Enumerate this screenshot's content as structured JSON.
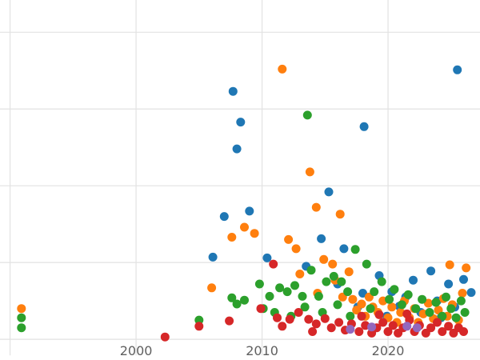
{
  "chart": {
    "background": "#ffffff",
    "gridline_color": "#e2e2e2",
    "tick_label_color": "#5f5f5f"
  },
  "chart_data": {
    "type": "scatter",
    "title": "",
    "xlabel": "",
    "ylabel": "",
    "grid": true,
    "legend": "none",
    "y_axis_labels_visible": false,
    "xlim": [
      1989.2,
      2027.3
    ],
    "ylim": [
      -0.27,
      4.42
    ],
    "x_gridlines": [
      1990,
      2000,
      2010,
      2020
    ],
    "y_gridlines": [
      0,
      1,
      2,
      3,
      4
    ],
    "x_ticks": [
      {
        "value": 2000,
        "label": "2000"
      },
      {
        "value": 2010,
        "label": "2010"
      },
      {
        "value": 2020,
        "label": "2020"
      }
    ],
    "series": [
      {
        "name": "blue",
        "color": "#1f77b4",
        "points": [
          [
            2007.7,
            3.23
          ],
          [
            2008.3,
            2.83
          ],
          [
            2008.0,
            2.48
          ],
          [
            2025.5,
            3.51
          ],
          [
            2018.1,
            2.77
          ],
          [
            2015.3,
            1.92
          ],
          [
            2007.0,
            1.6
          ],
          [
            2009.0,
            1.67
          ],
          [
            2006.1,
            1.07
          ],
          [
            2010.4,
            1.06
          ],
          [
            2014.7,
            1.31
          ],
          [
            2016.5,
            1.18
          ],
          [
            2013.5,
            0.95
          ],
          [
            2019.3,
            0.83
          ],
          [
            2022.0,
            0.77
          ],
          [
            2023.4,
            0.89
          ],
          [
            2024.8,
            0.72
          ],
          [
            2026.0,
            0.78
          ],
          [
            2023.9,
            0.5
          ],
          [
            2026.6,
            0.61
          ],
          [
            2020.9,
            0.43
          ],
          [
            2018.0,
            0.6
          ],
          [
            2021.4,
            0.55
          ],
          [
            2016.0,
            0.72
          ],
          [
            2019.9,
            0.3
          ],
          [
            2022.6,
            0.35
          ],
          [
            2024.2,
            0.28
          ],
          [
            2025.3,
            0.42
          ],
          [
            2017.6,
            0.42
          ],
          [
            2020.3,
            0.62
          ]
        ]
      },
      {
        "name": "orange",
        "color": "#ff7f0e",
        "points": [
          [
            2011.6,
            3.52
          ],
          [
            2013.8,
            2.18
          ],
          [
            2014.3,
            1.72
          ],
          [
            2016.2,
            1.63
          ],
          [
            2008.6,
            1.46
          ],
          [
            2007.6,
            1.33
          ],
          [
            2009.4,
            1.38
          ],
          [
            2012.1,
            1.3
          ],
          [
            2012.7,
            1.18
          ],
          [
            2014.9,
            1.04
          ],
          [
            2015.6,
            0.98
          ],
          [
            2006.0,
            0.67
          ],
          [
            2013.0,
            0.85
          ],
          [
            2014.4,
            0.6
          ],
          [
            2015.8,
            0.77
          ],
          [
            2016.4,
            0.55
          ],
          [
            2016.9,
            0.88
          ],
          [
            2017.2,
            0.52
          ],
          [
            2017.5,
            0.38
          ],
          [
            2017.9,
            0.46
          ],
          [
            2018.2,
            0.3
          ],
          [
            2018.5,
            0.55
          ],
          [
            2018.8,
            0.42
          ],
          [
            2019.2,
            0.35
          ],
          [
            2019.6,
            0.5
          ],
          [
            2020.0,
            0.28
          ],
          [
            2020.3,
            0.42
          ],
          [
            2020.7,
            0.22
          ],
          [
            2021.0,
            0.35
          ],
          [
            2021.3,
            0.5
          ],
          [
            2021.7,
            0.28
          ],
          [
            2022.1,
            0.4
          ],
          [
            2022.4,
            0.22
          ],
          [
            2022.8,
            0.33
          ],
          [
            2023.2,
            0.47
          ],
          [
            2023.6,
            0.27
          ],
          [
            2024.0,
            0.38
          ],
          [
            2024.4,
            0.53
          ],
          [
            2024.7,
            0.3
          ],
          [
            2025.1,
            0.45
          ],
          [
            2025.6,
            0.25
          ],
          [
            2025.9,
            0.6
          ],
          [
            2026.2,
            0.93
          ],
          [
            2024.9,
            0.97
          ],
          [
            1990.9,
            0.4
          ]
        ]
      },
      {
        "name": "green",
        "color": "#2ca02c",
        "points": [
          [
            1990.9,
            0.28
          ],
          [
            1990.9,
            0.15
          ],
          [
            2005.0,
            0.25
          ],
          [
            2007.6,
            0.54
          ],
          [
            2008.0,
            0.46
          ],
          [
            2008.6,
            0.51
          ],
          [
            2009.8,
            0.72
          ],
          [
            2010.6,
            0.56
          ],
          [
            2011.4,
            0.67
          ],
          [
            2012.0,
            0.62
          ],
          [
            2012.6,
            0.7
          ],
          [
            2013.2,
            0.56
          ],
          [
            2013.6,
            2.92
          ],
          [
            2013.9,
            0.9
          ],
          [
            2014.5,
            0.56
          ],
          [
            2015.1,
            0.75
          ],
          [
            2015.7,
            0.82
          ],
          [
            2016.3,
            0.75
          ],
          [
            2016.8,
            0.62
          ],
          [
            2017.4,
            1.17
          ],
          [
            2018.3,
            0.98
          ],
          [
            2018.9,
            0.62
          ],
          [
            2019.5,
            0.75
          ],
          [
            2020.1,
            0.52
          ],
          [
            2020.5,
            0.65
          ],
          [
            2021.1,
            0.45
          ],
          [
            2021.6,
            0.58
          ],
          [
            2022.2,
            0.4
          ],
          [
            2022.7,
            0.52
          ],
          [
            2023.3,
            0.35
          ],
          [
            2023.8,
            0.48
          ],
          [
            2024.3,
            0.3
          ],
          [
            2024.6,
            0.55
          ],
          [
            2025.0,
            0.4
          ],
          [
            2025.4,
            0.28
          ],
          [
            2025.8,
            0.5
          ],
          [
            2026.1,
            0.35
          ],
          [
            2010.1,
            0.4
          ],
          [
            2011.0,
            0.35
          ],
          [
            2012.3,
            0.3
          ],
          [
            2013.4,
            0.42
          ],
          [
            2014.8,
            0.35
          ],
          [
            2016.0,
            0.45
          ],
          [
            2017.0,
            0.3
          ],
          [
            2018.6,
            0.4
          ]
        ]
      },
      {
        "name": "red",
        "color": "#d62728",
        "points": [
          [
            2002.3,
            0.03
          ],
          [
            2005.0,
            0.17
          ],
          [
            2007.4,
            0.24
          ],
          [
            2010.9,
            0.98
          ],
          [
            2011.2,
            0.28
          ],
          [
            2011.6,
            0.17
          ],
          [
            2012.2,
            0.26
          ],
          [
            2012.9,
            0.35
          ],
          [
            2013.7,
            0.26
          ],
          [
            2014.3,
            0.2
          ],
          [
            2015.0,
            0.27
          ],
          [
            2009.9,
            0.4
          ],
          [
            2015.5,
            0.15
          ],
          [
            2016.1,
            0.22
          ],
          [
            2016.6,
            0.12
          ],
          [
            2017.1,
            0.2
          ],
          [
            2017.7,
            0.1
          ],
          [
            2018.2,
            0.18
          ],
          [
            2018.7,
            0.08
          ],
          [
            2019.1,
            0.15
          ],
          [
            2019.6,
            0.22
          ],
          [
            2020.0,
            0.1
          ],
          [
            2020.4,
            0.18
          ],
          [
            2020.8,
            0.08
          ],
          [
            2021.2,
            0.15
          ],
          [
            2021.7,
            0.25
          ],
          [
            2022.1,
            0.1
          ],
          [
            2022.5,
            0.18
          ],
          [
            2023.0,
            0.08
          ],
          [
            2023.4,
            0.15
          ],
          [
            2023.9,
            0.22
          ],
          [
            2024.3,
            0.1
          ],
          [
            2024.8,
            0.17
          ],
          [
            2025.2,
            0.08
          ],
          [
            2025.6,
            0.15
          ],
          [
            2026.0,
            0.1
          ],
          [
            2017.9,
            0.3
          ],
          [
            2019.3,
            0.32
          ],
          [
            2021.5,
            0.33
          ],
          [
            2014.0,
            0.1
          ]
        ]
      },
      {
        "name": "purple",
        "color": "#9467bd",
        "points": [
          [
            2017.0,
            0.13
          ],
          [
            2018.7,
            0.16
          ],
          [
            2021.5,
            0.17
          ],
          [
            2022.3,
            0.15
          ]
        ]
      }
    ]
  }
}
